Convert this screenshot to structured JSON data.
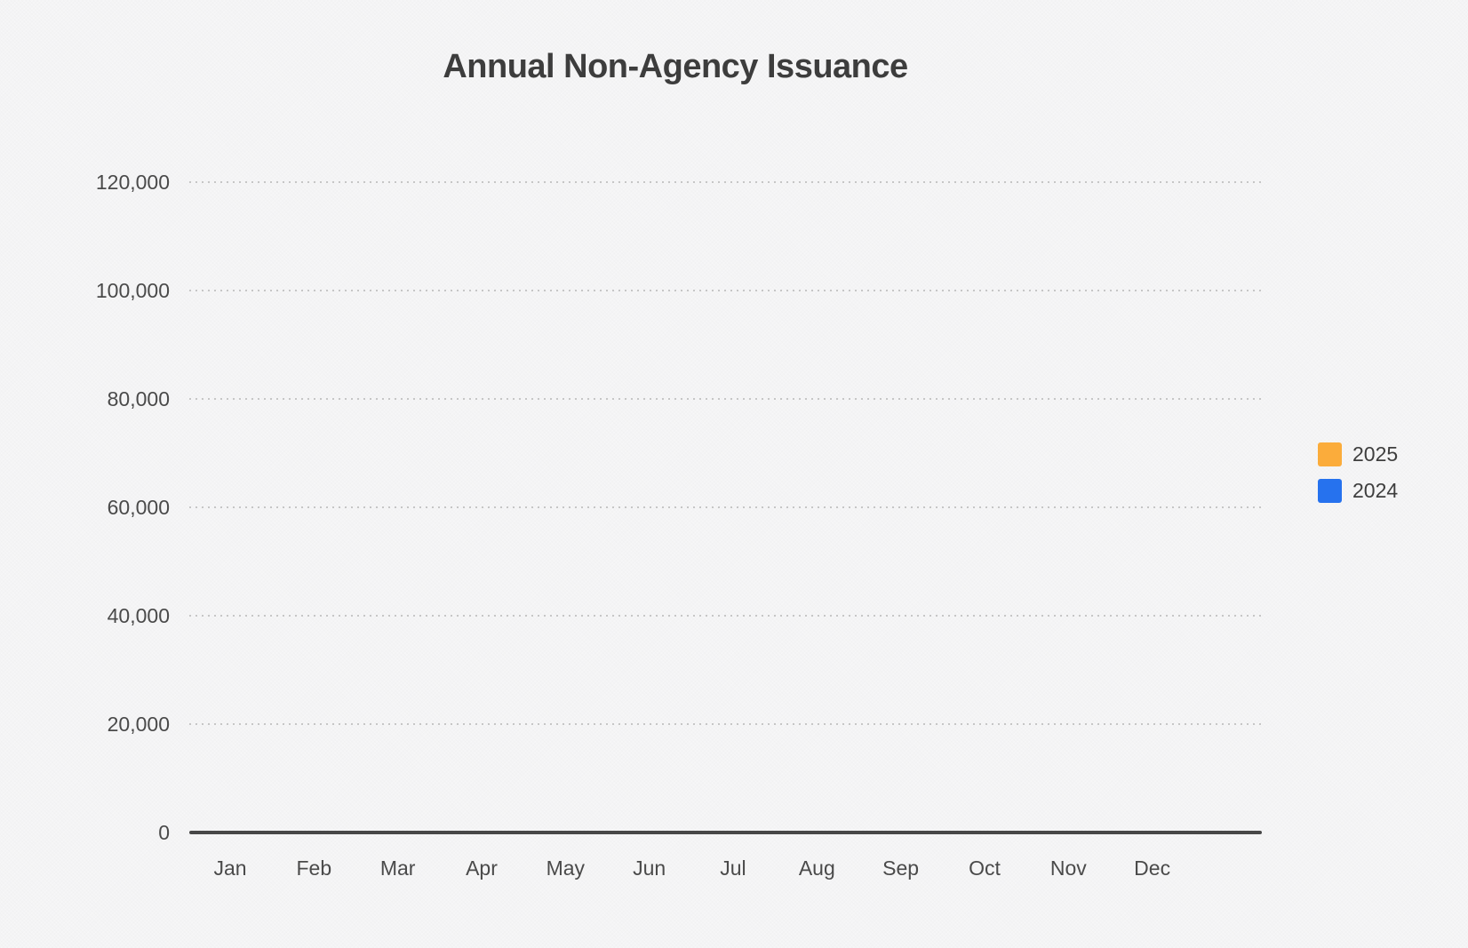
{
  "chart_data": {
    "type": "bar",
    "title": "Annual Non-Agency Issuance",
    "xlabel": "",
    "ylabel": "",
    "categories": [
      "Jan",
      "Feb",
      "Mar",
      "Apr",
      "May",
      "Jun",
      "Jul",
      "Aug",
      "Sep",
      "Oct",
      "Nov",
      "Dec"
    ],
    "series": [
      {
        "name": "2025",
        "color": "#fbac3b",
        "values": []
      },
      {
        "name": "2024",
        "color": "#2672ee",
        "values": []
      }
    ],
    "note": "no bars rendered - empty plot area",
    "ylim": [
      0,
      120000
    ],
    "ytick_interval": 20000,
    "yticks": [
      {
        "value": 0,
        "label": "0"
      },
      {
        "value": 20000,
        "label": "20,000"
      },
      {
        "value": 40000,
        "label": "40,000"
      },
      {
        "value": 60000,
        "label": "60,000"
      },
      {
        "value": 80000,
        "label": "80,000"
      },
      {
        "value": 100000,
        "label": "100,000"
      },
      {
        "value": 120000,
        "label": "120,000"
      }
    ],
    "grid": "horizontal-dotted",
    "legend_position": "right"
  },
  "legend": [
    {
      "label": "2025",
      "color": "#fbac3b"
    },
    {
      "label": "2024",
      "color": "#2672ee"
    }
  ],
  "colors": {
    "background": "#f4f4f5",
    "axis_line": "#474747",
    "gridline": "#c6c6c6",
    "title_text": "#3d3d3d",
    "tick_text": "#4a4a4a"
  }
}
